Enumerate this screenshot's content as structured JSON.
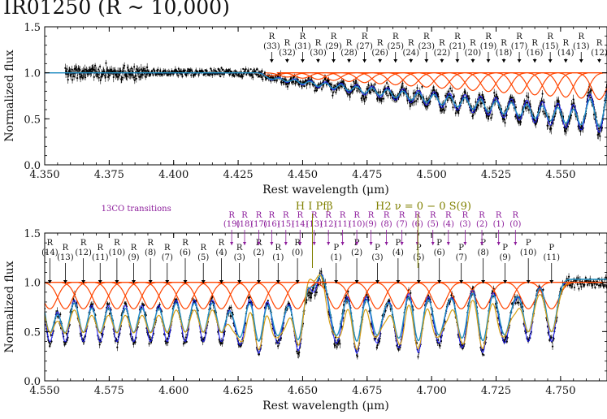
{
  "title": "IR01250 (R ~ 10,000)",
  "colors": {
    "data": "#000000",
    "model_total": "#1f8fbf",
    "model_12co": "#1a1aff",
    "gaussian_components": "#ff4500",
    "model_13co": "#d4a017",
    "co13_annotation": "#8b1a9a",
    "atomic_annotation": "#808000",
    "arrow": "#000000"
  },
  "chart_data": [
    {
      "type": "line",
      "panel": "top",
      "xlabel": "Rest wavelength (μm)",
      "ylabel": "Normalized flux",
      "xlim": [
        4.35,
        4.568
      ],
      "ylim": [
        0.0,
        1.5
      ],
      "xticks": [
        4.35,
        4.375,
        4.4,
        4.425,
        4.45,
        4.475,
        4.5,
        4.525,
        4.55
      ],
      "yticks": [
        0.0,
        0.5,
        1.0,
        1.5
      ],
      "line_labels": [
        {
          "branch": "R",
          "j": 33,
          "x": 4.438
        },
        {
          "branch": "R",
          "j": 32,
          "x": 4.444
        },
        {
          "branch": "R",
          "j": 31,
          "x": 4.45
        },
        {
          "branch": "R",
          "j": 30,
          "x": 4.456
        },
        {
          "branch": "R",
          "j": 29,
          "x": 4.462
        },
        {
          "branch": "R",
          "j": 28,
          "x": 4.468
        },
        {
          "branch": "R",
          "j": 27,
          "x": 4.474
        },
        {
          "branch": "R",
          "j": 26,
          "x": 4.48
        },
        {
          "branch": "R",
          "j": 25,
          "x": 4.486
        },
        {
          "branch": "R",
          "j": 24,
          "x": 4.492
        },
        {
          "branch": "R",
          "j": 23,
          "x": 4.498
        },
        {
          "branch": "R",
          "j": 22,
          "x": 4.504
        },
        {
          "branch": "R",
          "j": 21,
          "x": 4.51
        },
        {
          "branch": "R",
          "j": 20,
          "x": 4.516
        },
        {
          "branch": "R",
          "j": 19,
          "x": 4.522
        },
        {
          "branch": "R",
          "j": 18,
          "x": 4.528
        },
        {
          "branch": "R",
          "j": 17,
          "x": 4.534
        },
        {
          "branch": "R",
          "j": 16,
          "x": 4.54
        },
        {
          "branch": "R",
          "j": 15,
          "x": 4.546
        },
        {
          "branch": "R",
          "j": 14,
          "x": 4.552
        },
        {
          "branch": "R",
          "j": 13,
          "x": 4.558
        },
        {
          "branch": "R",
          "j": 12,
          "x": 4.565
        }
      ],
      "data_range": [
        4.358,
        4.568
      ],
      "series": [
        {
          "name": "observed",
          "style": "points with error bars"
        },
        {
          "name": "model",
          "style": "line"
        },
        {
          "name": "Gaussian components",
          "style": "line"
        }
      ]
    },
    {
      "type": "line",
      "panel": "bottom",
      "xlabel": "Rest wavelength (μm)",
      "ylabel": "Normalized flux",
      "xlim": [
        4.55,
        4.768
      ],
      "ylim": [
        0.0,
        1.5
      ],
      "xticks": [
        4.55,
        4.575,
        4.6,
        4.625,
        4.65,
        4.675,
        4.7,
        4.725,
        4.75
      ],
      "yticks": [
        0.0,
        0.5,
        1.0,
        1.5
      ],
      "line_labels": [
        {
          "branch": "R",
          "j": 14,
          "x": 4.552
        },
        {
          "branch": "R",
          "j": 13,
          "x": 4.558
        },
        {
          "branch": "R",
          "j": 12,
          "x": 4.565
        },
        {
          "branch": "R",
          "j": 11,
          "x": 4.5715
        },
        {
          "branch": "R",
          "j": 10,
          "x": 4.578
        },
        {
          "branch": "R",
          "j": 9,
          "x": 4.5845
        },
        {
          "branch": "R",
          "j": 8,
          "x": 4.591
        },
        {
          "branch": "R",
          "j": 7,
          "x": 4.5975
        },
        {
          "branch": "R",
          "j": 6,
          "x": 4.6045
        },
        {
          "branch": "R",
          "j": 5,
          "x": 4.6115
        },
        {
          "branch": "R",
          "j": 4,
          "x": 4.6185
        },
        {
          "branch": "R",
          "j": 3,
          "x": 4.6255
        },
        {
          "branch": "R",
          "j": 2,
          "x": 4.633
        },
        {
          "branch": "R",
          "j": 1,
          "x": 4.6405
        },
        {
          "branch": "R",
          "j": 0,
          "x": 4.648
        },
        {
          "branch": "P",
          "j": 1,
          "x": 4.663
        },
        {
          "branch": "P",
          "j": 2,
          "x": 4.671
        },
        {
          "branch": "P",
          "j": 3,
          "x": 4.679
        },
        {
          "branch": "P",
          "j": 4,
          "x": 4.687
        },
        {
          "branch": "P",
          "j": 5,
          "x": 4.695
        },
        {
          "branch": "P",
          "j": 6,
          "x": 4.703
        },
        {
          "branch": "P",
          "j": 7,
          "x": 4.7115
        },
        {
          "branch": "P",
          "j": 8,
          "x": 4.72
        },
        {
          "branch": "P",
          "j": 9,
          "x": 4.7285
        },
        {
          "branch": "P",
          "j": 10,
          "x": 4.7375
        },
        {
          "branch": "P",
          "j": 11,
          "x": 4.7465
        }
      ],
      "co13_title": "13CO transitions",
      "co13_labels": [
        {
          "branch": "R",
          "j": 19,
          "x": 4.6225
        },
        {
          "branch": "R",
          "j": 18,
          "x": 4.6275
        },
        {
          "branch": "R",
          "j": 17,
          "x": 4.633
        },
        {
          "branch": "R",
          "j": 16,
          "x": 4.638
        },
        {
          "branch": "R",
          "j": 15,
          "x": 4.6435
        },
        {
          "branch": "R",
          "j": 14,
          "x": 4.649
        },
        {
          "branch": "R",
          "j": 13,
          "x": 4.6545
        },
        {
          "branch": "R",
          "j": 12,
          "x": 4.66
        },
        {
          "branch": "R",
          "j": 11,
          "x": 4.6655
        },
        {
          "branch": "R",
          "j": 10,
          "x": 4.671
        },
        {
          "branch": "R",
          "j": 9,
          "x": 4.6765
        },
        {
          "branch": "R",
          "j": 8,
          "x": 4.6825
        },
        {
          "branch": "R",
          "j": 7,
          "x": 4.6885
        },
        {
          "branch": "R",
          "j": 6,
          "x": 4.6945
        },
        {
          "branch": "R",
          "j": 5,
          "x": 4.7005
        },
        {
          "branch": "R",
          "j": 4,
          "x": 4.7065
        },
        {
          "branch": "R",
          "j": 3,
          "x": 4.713
        },
        {
          "branch": "R",
          "j": 2,
          "x": 4.7195
        },
        {
          "branch": "R",
          "j": 1,
          "x": 4.726
        },
        {
          "branch": "R",
          "j": 0,
          "x": 4.7325
        }
      ],
      "atomic_lines": [
        {
          "label": "H I Pfβ",
          "x": 4.6538
        },
        {
          "label": "H2 ν = 0 − 0 S(9)",
          "x": 4.6947
        }
      ],
      "data_range": [
        4.55,
        4.768
      ],
      "series": [
        {
          "name": "observed",
          "style": "points with error bars"
        },
        {
          "name": "12CO model",
          "style": "line"
        },
        {
          "name": "13CO model",
          "style": "line"
        },
        {
          "name": "total model",
          "style": "line"
        },
        {
          "name": "Gaussian components",
          "style": "line"
        }
      ]
    }
  ]
}
